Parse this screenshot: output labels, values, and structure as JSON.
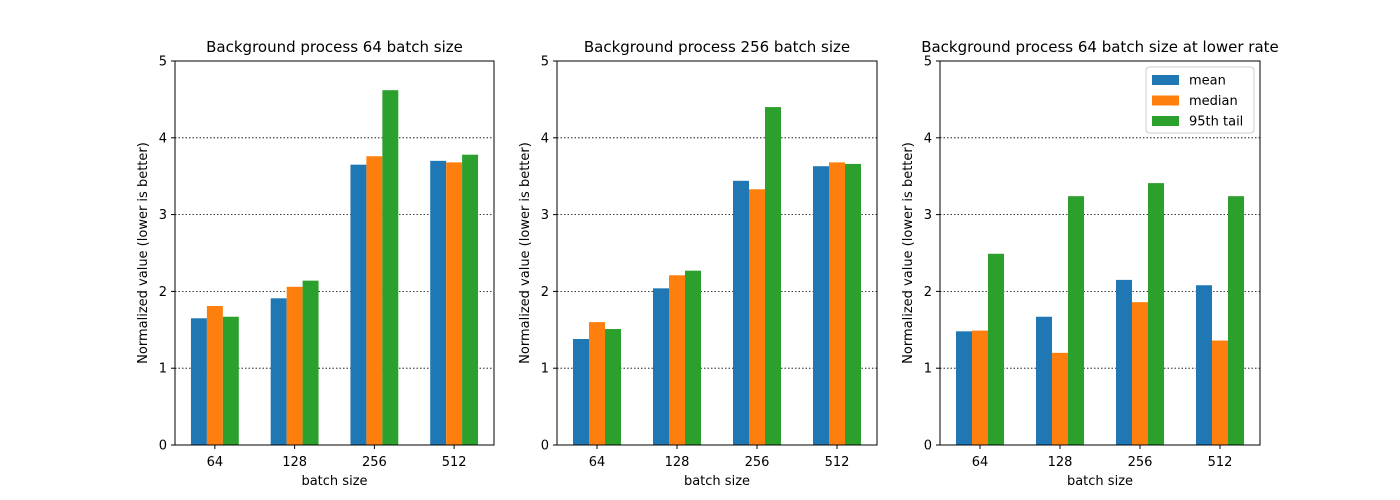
{
  "chart_data": [
    {
      "type": "bar",
      "title": "Background process 64 batch size",
      "xlabel": "batch size",
      "ylabel": "Normalized value (lower is better)",
      "categories": [
        "64",
        "128",
        "256",
        "512"
      ],
      "ylim": [
        0,
        5
      ],
      "yticks": [
        0,
        1,
        2,
        3,
        4,
        5
      ],
      "grid": "y-dotted",
      "series": [
        {
          "name": "mean",
          "values": [
            1.65,
            1.91,
            3.65,
            3.7
          ]
        },
        {
          "name": "median",
          "values": [
            1.81,
            2.06,
            3.76,
            3.68
          ]
        },
        {
          "name": "95th tail",
          "values": [
            1.67,
            2.14,
            4.62,
            3.78
          ]
        }
      ]
    },
    {
      "type": "bar",
      "title": "Background process 256 batch size",
      "xlabel": "batch size",
      "ylabel": "Normalized value (lower is better)",
      "categories": [
        "64",
        "128",
        "256",
        "512"
      ],
      "ylim": [
        0,
        5
      ],
      "yticks": [
        0,
        1,
        2,
        3,
        4,
        5
      ],
      "grid": "y-dotted",
      "series": [
        {
          "name": "mean",
          "values": [
            1.38,
            2.04,
            3.44,
            3.63
          ]
        },
        {
          "name": "median",
          "values": [
            1.6,
            2.21,
            3.33,
            3.68
          ]
        },
        {
          "name": "95th tail",
          "values": [
            1.51,
            2.27,
            4.4,
            3.66
          ]
        }
      ]
    },
    {
      "type": "bar",
      "title": "Background process 64 batch size at lower rate",
      "xlabel": "batch size",
      "ylabel": "Normalized value (lower is better)",
      "categories": [
        "64",
        "128",
        "256",
        "512"
      ],
      "ylim": [
        0,
        5
      ],
      "yticks": [
        0,
        1,
        2,
        3,
        4,
        5
      ],
      "grid": "y-dotted",
      "legend": "top-right",
      "series": [
        {
          "name": "mean",
          "values": [
            1.48,
            1.67,
            2.15,
            2.08
          ]
        },
        {
          "name": "median",
          "values": [
            1.49,
            1.2,
            1.86,
            1.36
          ]
        },
        {
          "name": "95th tail",
          "values": [
            2.49,
            3.24,
            3.41,
            3.24
          ]
        }
      ]
    }
  ],
  "colors": {
    "mean": "#1f77b4",
    "median": "#ff7f0e",
    "95th tail": "#2ca02c"
  }
}
